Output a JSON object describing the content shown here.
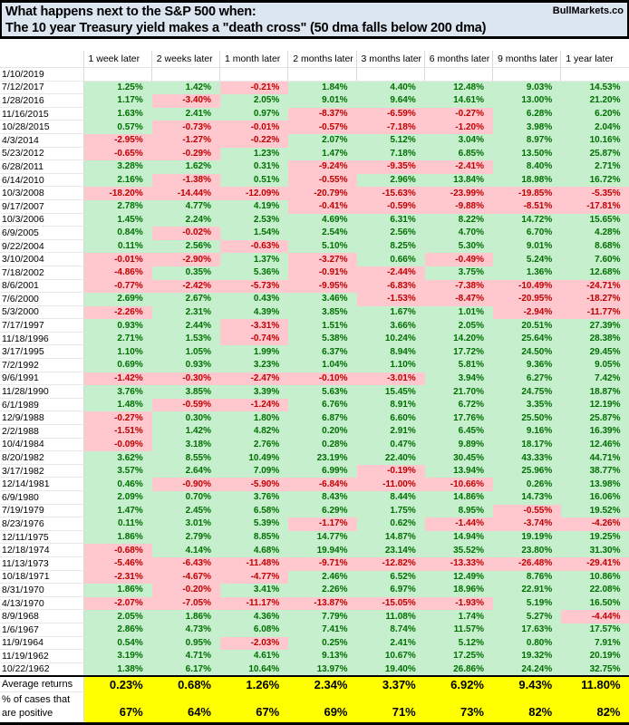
{
  "header": {
    "line1": "What happens next to the S&P 500 when:",
    "line2": "The 10 year Treasury yield makes a \"death cross\" (50 dma falls below 200 dma)",
    "brand": "BullMarkets.co"
  },
  "colors": {
    "title_bg": "#dce6f1",
    "positive_bg": "#c6efce",
    "positive_text": "#006f00",
    "negative_bg": "#ffc7ce",
    "negative_text": "#c00000",
    "summary_bg": "#ffff00"
  },
  "chart_data": {
    "type": "table",
    "title": "What happens next to the S&P 500 when: The 10 year Treasury yield makes a \"death cross\" (50 dma falls below 200 dma)",
    "columns": [
      "1 week later",
      "2 weeks later",
      "1 month later",
      "2 months later",
      "3 months later",
      "6 months later",
      "9 months later",
      "1 year later"
    ],
    "rows": [
      [
        "1/10/2019",
        "",
        "",
        "",
        "",
        "",
        "",
        "",
        ""
      ],
      [
        "7/12/2017",
        "1.25%",
        "1.42%",
        "-0.21%",
        "1.84%",
        "4.40%",
        "12.48%",
        "9.03%",
        "14.53%"
      ],
      [
        "1/28/2016",
        "1.17%",
        "-3.40%",
        "2.05%",
        "9.01%",
        "9.64%",
        "14.61%",
        "13.00%",
        "21.20%"
      ],
      [
        "11/16/2015",
        "1.63%",
        "2.41%",
        "0.97%",
        "-8.37%",
        "-6.59%",
        "-0.27%",
        "6.28%",
        "6.20%"
      ],
      [
        "10/28/2015",
        "0.57%",
        "-0.73%",
        "-0.01%",
        "-0.57%",
        "-7.18%",
        "-1.20%",
        "3.98%",
        "2.04%"
      ],
      [
        "4/3/2014",
        "-2.95%",
        "-1.27%",
        "-0.22%",
        "2.07%",
        "5.12%",
        "3.04%",
        "8.97%",
        "10.16%"
      ],
      [
        "5/23/2012",
        "-0.65%",
        "-0.29%",
        "1.23%",
        "1.47%",
        "7.18%",
        "6.85%",
        "13.50%",
        "25.87%"
      ],
      [
        "6/28/2011",
        "3.28%",
        "1.62%",
        "0.31%",
        "-9.24%",
        "-9.35%",
        "-2.41%",
        "8.40%",
        "2.71%"
      ],
      [
        "6/14/2010",
        "2.16%",
        "-1.38%",
        "0.51%",
        "-0.55%",
        "2.96%",
        "13.84%",
        "18.98%",
        "16.72%"
      ],
      [
        "10/3/2008",
        "-18.20%",
        "-14.44%",
        "-12.09%",
        "-20.79%",
        "-15.63%",
        "-23.99%",
        "-19.85%",
        "-5.35%"
      ],
      [
        "9/17/2007",
        "2.78%",
        "4.77%",
        "4.19%",
        "-0.41%",
        "-0.59%",
        "-9.88%",
        "-8.51%",
        "-17.81%"
      ],
      [
        "10/3/2006",
        "1.45%",
        "2.24%",
        "2.53%",
        "4.69%",
        "6.31%",
        "8.22%",
        "14.72%",
        "15.65%"
      ],
      [
        "6/9/2005",
        "0.84%",
        "-0.02%",
        "1.54%",
        "2.54%",
        "2.56%",
        "4.70%",
        "6.70%",
        "4.28%"
      ],
      [
        "9/22/2004",
        "0.11%",
        "2.56%",
        "-0.63%",
        "5.10%",
        "8.25%",
        "5.30%",
        "9.01%",
        "8.68%"
      ],
      [
        "3/10/2004",
        "-0.01%",
        "-2.90%",
        "1.37%",
        "-3.27%",
        "0.66%",
        "-0.49%",
        "5.24%",
        "7.60%"
      ],
      [
        "7/18/2002",
        "-4.86%",
        "0.35%",
        "5.36%",
        "-0.91%",
        "-2.44%",
        "3.75%",
        "1.36%",
        "12.68%"
      ],
      [
        "8/6/2001",
        "-0.77%",
        "-2.42%",
        "-5.73%",
        "-9.95%",
        "-6.83%",
        "-7.38%",
        "-10.49%",
        "-24.71%"
      ],
      [
        "7/6/2000",
        "2.69%",
        "2.67%",
        "0.43%",
        "3.46%",
        "-1.53%",
        "-8.47%",
        "-20.95%",
        "-18.27%"
      ],
      [
        "5/3/2000",
        "-2.26%",
        "2.31%",
        "4.39%",
        "3.85%",
        "1.67%",
        "1.01%",
        "-2.94%",
        "-11.77%"
      ],
      [
        "7/17/1997",
        "0.93%",
        "2.44%",
        "-3.31%",
        "1.51%",
        "3.66%",
        "2.05%",
        "20.51%",
        "27.39%"
      ],
      [
        "11/18/1996",
        "2.71%",
        "1.53%",
        "-0.74%",
        "5.38%",
        "10.24%",
        "14.20%",
        "25.64%",
        "28.38%"
      ],
      [
        "3/17/1995",
        "1.10%",
        "1.05%",
        "1.99%",
        "6.37%",
        "8.94%",
        "17.72%",
        "24.50%",
        "29.45%"
      ],
      [
        "7/2/1992",
        "0.69%",
        "0.93%",
        "3.23%",
        "1.04%",
        "1.10%",
        "5.81%",
        "9.36%",
        "9.05%"
      ],
      [
        "9/6/1991",
        "-1.42%",
        "-0.30%",
        "-2.47%",
        "-0.10%",
        "-3.01%",
        "3.94%",
        "6.27%",
        "7.42%"
      ],
      [
        "11/28/1990",
        "3.76%",
        "3.85%",
        "3.39%",
        "5.63%",
        "15.45%",
        "21.70%",
        "24.75%",
        "18.87%"
      ],
      [
        "6/1/1989",
        "1.48%",
        "-0.59%",
        "-1.24%",
        "6.76%",
        "8.91%",
        "6.72%",
        "3.35%",
        "12.19%"
      ],
      [
        "12/9/1988",
        "-0.27%",
        "0.30%",
        "1.80%",
        "6.87%",
        "6.60%",
        "17.76%",
        "25.50%",
        "25.87%"
      ],
      [
        "2/2/1988",
        "-1.51%",
        "1.42%",
        "4.82%",
        "0.20%",
        "2.91%",
        "6.45%",
        "9.16%",
        "16.39%"
      ],
      [
        "10/4/1984",
        "-0.09%",
        "3.18%",
        "2.76%",
        "0.28%",
        "0.47%",
        "9.89%",
        "18.17%",
        "12.46%"
      ],
      [
        "8/20/1982",
        "3.62%",
        "8.55%",
        "10.49%",
        "23.19%",
        "22.40%",
        "30.45%",
        "43.33%",
        "44.71%"
      ],
      [
        "3/17/1982",
        "3.57%",
        "2.64%",
        "7.09%",
        "6.99%",
        "-0.19%",
        "13.94%",
        "25.96%",
        "38.77%"
      ],
      [
        "12/14/1981",
        "0.46%",
        "-0.90%",
        "-5.90%",
        "-6.84%",
        "-11.00%",
        "-10.66%",
        "0.26%",
        "13.98%"
      ],
      [
        "6/9/1980",
        "2.09%",
        "0.70%",
        "3.76%",
        "8.43%",
        "8.44%",
        "14.86%",
        "14.73%",
        "16.06%"
      ],
      [
        "7/19/1979",
        "1.47%",
        "2.45%",
        "6.58%",
        "6.29%",
        "1.75%",
        "8.95%",
        "-0.55%",
        "19.52%"
      ],
      [
        "8/23/1976",
        "0.11%",
        "3.01%",
        "5.39%",
        "-1.17%",
        "0.62%",
        "-1.44%",
        "-3.74%",
        "-4.26%"
      ],
      [
        "12/11/1975",
        "1.86%",
        "2.79%",
        "8.85%",
        "14.77%",
        "14.87%",
        "14.94%",
        "19.19%",
        "19.25%"
      ],
      [
        "12/18/1974",
        "-0.68%",
        "4.14%",
        "4.68%",
        "19.94%",
        "23.14%",
        "35.52%",
        "23.80%",
        "31.30%"
      ],
      [
        "11/13/1973",
        "-5.46%",
        "-6.43%",
        "-11.48%",
        "-9.71%",
        "-12.82%",
        "-13.33%",
        "-26.48%",
        "-29.41%"
      ],
      [
        "10/18/1971",
        "-2.31%",
        "-4.67%",
        "-4.77%",
        "2.46%",
        "6.52%",
        "12.49%",
        "8.76%",
        "10.86%"
      ],
      [
        "8/31/1970",
        "1.86%",
        "-0.20%",
        "3.41%",
        "2.26%",
        "6.97%",
        "18.96%",
        "22.91%",
        "22.08%"
      ],
      [
        "4/13/1970",
        "-2.07%",
        "-7.05%",
        "-11.17%",
        "-13.87%",
        "-15.05%",
        "-1.93%",
        "5.19%",
        "16.50%"
      ],
      [
        "8/9/1968",
        "2.05%",
        "1.86%",
        "4.36%",
        "7.79%",
        "11.08%",
        "1.74%",
        "5.27%",
        "-4.44%"
      ],
      [
        "1/6/1967",
        "2.86%",
        "4.73%",
        "6.08%",
        "7.41%",
        "8.74%",
        "11.57%",
        "17.63%",
        "17.57%"
      ],
      [
        "11/9/1964",
        "0.54%",
        "0.95%",
        "-2.03%",
        "0.25%",
        "2.41%",
        "5.12%",
        "0.80%",
        "7.91%"
      ],
      [
        "11/19/1962",
        "3.19%",
        "4.71%",
        "4.61%",
        "9.13%",
        "10.67%",
        "17.25%",
        "19.32%",
        "20.19%"
      ],
      [
        "10/22/1962",
        "1.38%",
        "6.17%",
        "10.64%",
        "13.97%",
        "19.40%",
        "26.86%",
        "24.24%",
        "32.75%"
      ]
    ],
    "summary": {
      "average_label": "Average returns",
      "average": [
        "0.23%",
        "0.68%",
        "1.26%",
        "2.34%",
        "3.37%",
        "6.92%",
        "9.43%",
        "11.80%"
      ],
      "positive_label": "% of cases that are positive",
      "positive": [
        "67%",
        "64%",
        "67%",
        "69%",
        "71%",
        "73%",
        "82%",
        "82%"
      ]
    }
  }
}
